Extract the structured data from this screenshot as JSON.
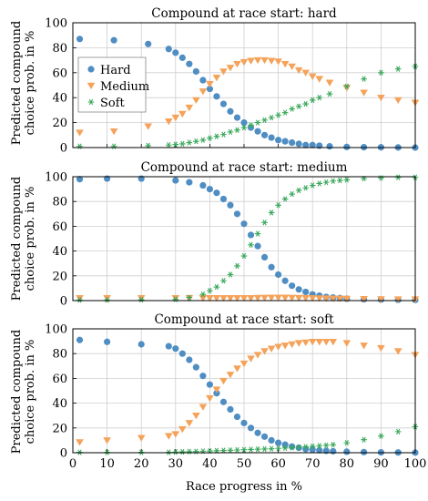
{
  "figure": {
    "xlabel": "Race progress in %",
    "ylabel_line1": "Predicted compound",
    "ylabel_line2": "choice prob. in %"
  },
  "legend": [
    "Hard",
    "Medium",
    "Soft"
  ],
  "colors": {
    "Hard": "#4f8ec3",
    "Medium": "#f5a25a",
    "Soft": "#39a85a",
    "grid": "#cfcfcf"
  },
  "chart_data": [
    {
      "type": "scatter",
      "title": "Compound at race start: hard",
      "xlabel": "",
      "ylabel": "Predicted compound choice prob. in %",
      "xlim": [
        0,
        100
      ],
      "ylim": [
        0,
        100
      ],
      "xticks": [
        0,
        10,
        20,
        30,
        40,
        50,
        60,
        70,
        80,
        90,
        100
      ],
      "yticks": [
        0,
        20,
        40,
        60,
        80,
        100
      ],
      "grid": true,
      "legend_position": "top-left",
      "x": [
        2,
        12,
        22,
        28,
        30,
        32,
        34,
        36,
        38,
        40,
        42,
        44,
        46,
        48,
        50,
        52,
        54,
        56,
        58,
        60,
        62,
        64,
        66,
        68,
        70,
        72,
        75,
        80,
        85,
        90,
        95,
        100
      ],
      "series": [
        {
          "name": "Hard",
          "marker": "circle",
          "values": [
            87,
            86,
            83,
            79,
            76,
            72,
            67,
            61,
            54,
            47,
            41,
            35,
            29,
            24,
            20,
            16,
            13,
            10,
            8,
            6,
            5,
            4,
            3,
            2,
            2,
            1.5,
            1,
            0.5,
            0.3,
            0.2,
            0.1,
            0
          ]
        },
        {
          "name": "Medium",
          "marker": "triangle-down",
          "values": [
            12,
            13,
            17,
            21,
            24,
            27,
            32,
            38,
            45,
            51,
            56,
            61,
            64,
            67,
            68.5,
            69.5,
            70,
            70,
            69.5,
            69,
            67,
            65,
            62,
            60,
            57,
            55,
            52,
            48,
            44,
            40,
            38,
            36
          ]
        },
        {
          "name": "Soft",
          "marker": "star",
          "values": [
            1,
            1,
            1.5,
            2,
            2.5,
            3,
            4,
            5,
            6,
            7.5,
            9,
            10.5,
            12.5,
            14,
            16,
            18,
            20,
            22,
            24,
            26,
            28,
            31,
            33,
            35,
            38,
            40,
            43,
            49,
            55,
            60,
            63,
            65
          ]
        }
      ]
    },
    {
      "type": "scatter",
      "title": "Compound at race start: medium",
      "xlabel": "",
      "ylabel": "Predicted compound choice prob. in %",
      "xlim": [
        0,
        100
      ],
      "ylim": [
        0,
        100
      ],
      "xticks": [
        0,
        10,
        20,
        30,
        40,
        50,
        60,
        70,
        80,
        90,
        100
      ],
      "yticks": [
        0,
        20,
        40,
        60,
        80,
        100
      ],
      "grid": true,
      "x": [
        2,
        10,
        20,
        30,
        34,
        38,
        40,
        42,
        44,
        46,
        48,
        50,
        52,
        54,
        56,
        58,
        60,
        62,
        64,
        66,
        68,
        70,
        72,
        74,
        76,
        78,
        80,
        85,
        90,
        95,
        100
      ],
      "series": [
        {
          "name": "Hard",
          "marker": "circle",
          "values": [
            98,
            98.5,
            98.5,
            97,
            95.5,
            93,
            90,
            87,
            82,
            77,
            70,
            62,
            53,
            44,
            35,
            27,
            21,
            16,
            12,
            9,
            7,
            5,
            4,
            3,
            2.5,
            2,
            1.5,
            1,
            0.8,
            0.6,
            0.5
          ]
        },
        {
          "name": "Medium",
          "marker": "triangle-down",
          "values": [
            2,
            2,
            2,
            2,
            2,
            2,
            2,
            2,
            2,
            2,
            2,
            2,
            2,
            2.2,
            2.3,
            2.4,
            2.4,
            2.4,
            2.3,
            2.2,
            2.1,
            2,
            1.9,
            1.8,
            1.7,
            1.6,
            1.5,
            1.3,
            1.1,
            1,
            1
          ]
        },
        {
          "name": "Soft",
          "marker": "star",
          "values": [
            0.5,
            0.5,
            0.7,
            1,
            2.5,
            5,
            8,
            11,
            16,
            21,
            28,
            36,
            45,
            54,
            63,
            71,
            77,
            82,
            86,
            89,
            91,
            93,
            94.5,
            95.5,
            96.5,
            97,
            97.5,
            98.5,
            99,
            99.5,
            99.5
          ]
        }
      ]
    },
    {
      "type": "scatter",
      "title": "Compound at race start: soft",
      "xlabel": "Race progress in %",
      "ylabel": "Predicted compound choice prob. in %",
      "xlim": [
        0,
        100
      ],
      "ylim": [
        0,
        100
      ],
      "xticks": [
        0,
        10,
        20,
        30,
        40,
        50,
        60,
        70,
        80,
        90,
        100
      ],
      "yticks": [
        0,
        20,
        40,
        60,
        80,
        100
      ],
      "grid": true,
      "x": [
        2,
        10,
        20,
        28,
        30,
        32,
        34,
        36,
        38,
        40,
        42,
        44,
        46,
        48,
        50,
        52,
        54,
        56,
        58,
        60,
        62,
        64,
        66,
        68,
        70,
        72,
        74,
        76,
        80,
        85,
        90,
        95,
        100
      ],
      "series": [
        {
          "name": "Hard",
          "marker": "circle",
          "values": [
            91,
            89.5,
            87.5,
            86,
            84,
            80,
            75,
            69,
            62,
            55,
            48,
            41,
            35,
            29,
            24,
            20,
            16,
            13,
            10,
            8,
            6.5,
            5,
            4,
            3,
            2.5,
            2,
            1.5,
            1.2,
            0.8,
            0.5,
            0.3,
            0.2,
            0.1
          ]
        },
        {
          "name": "Medium",
          "marker": "triangle-down",
          "values": [
            8.5,
            10,
            12,
            13.5,
            15,
            19,
            24,
            30,
            37,
            44,
            51,
            58,
            63,
            68,
            72,
            76,
            79,
            82,
            84,
            85.5,
            86.5,
            87.5,
            88.5,
            89,
            89.5,
            89.5,
            89.5,
            89.5,
            88.5,
            86.5,
            84.5,
            82,
            79
          ]
        },
        {
          "name": "Soft",
          "marker": "star",
          "values": [
            0.3,
            0.3,
            0.3,
            0.3,
            0.5,
            0.7,
            0.9,
            1,
            1.2,
            1.4,
            1.6,
            1.8,
            2,
            2.2,
            2.4,
            2.6,
            2.8,
            3,
            3.2,
            3.5,
            3.8,
            4.1,
            4.4,
            4.8,
            5.1,
            5.6,
            6,
            6.5,
            8,
            10.5,
            13.5,
            17,
            21
          ]
        }
      ]
    }
  ]
}
